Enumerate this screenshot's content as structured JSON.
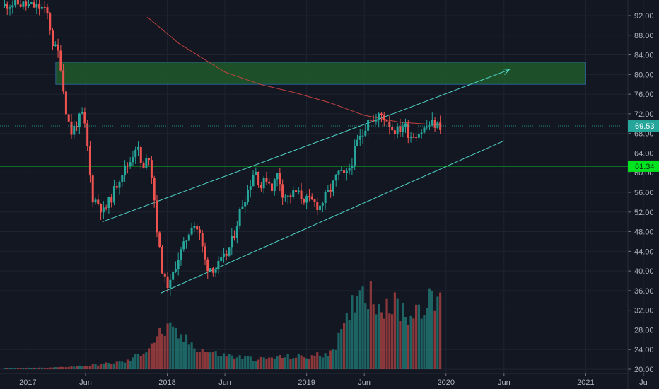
{
  "colors": {
    "background": "#131722",
    "grid": "#1f2330",
    "text": "#b2b5be",
    "up": "#26a69a",
    "down": "#ef5350",
    "volume_up": "#26a69a",
    "volume_down": "#ef5350",
    "channel": "#4fd1c5",
    "zone_fill": "#1f5a2a",
    "zone_border": "#2f6fa8",
    "support_line": "#00ff2a",
    "moving_average": "#c2423f",
    "price_badge": "#26a69a",
    "support_badge": "#00e41f"
  },
  "price_axis": {
    "labels": [
      "92.00",
      "88.00",
      "84.00",
      "80.00",
      "76.00",
      "72.00",
      "68.00",
      "64.00",
      "60.00",
      "56.00",
      "52.00",
      "48.00",
      "44.00",
      "40.00",
      "36.00",
      "32.00",
      "28.00",
      "24.00",
      "20.00"
    ]
  },
  "time_axis": {
    "labels": [
      "2017",
      "Jun",
      "2018",
      "Jun",
      "2019",
      "Jun",
      "2020",
      "Jun",
      "2021",
      "Ju"
    ]
  },
  "last_price_label": "69.53",
  "support_label": "61.34",
  "chart_data": {
    "type": "candlestick",
    "ylim": [
      20,
      94
    ],
    "xlim": [
      "2016-10-20",
      "2021-07-10"
    ],
    "current_price": 69.53,
    "support_level": 61.34,
    "target_zone": {
      "from": "2017-03-15",
      "to": "2021-01-01",
      "low": 78,
      "high": 82.5
    },
    "channel_upper": [
      [
        "2017-07-15",
        50
      ],
      [
        "2019-09-01",
        72.5
      ]
    ],
    "channel_lower": [
      [
        "2017-12-15",
        35.5
      ],
      [
        "2020-06-01",
        66.5
      ]
    ],
    "projection_arrow": [
      [
        "2019-09-01",
        72.5
      ],
      [
        "2020-06-15",
        81
      ]
    ],
    "moving_average": [
      [
        "2017-11-10",
        91.7
      ],
      [
        "2018-02-01",
        86.3
      ],
      [
        "2018-06-01",
        80.5
      ],
      [
        "2018-09-01",
        78.0
      ],
      [
        "2018-12-01",
        76.3
      ],
      [
        "2019-03-01",
        74.3
      ],
      [
        "2019-06-01",
        71.7
      ],
      [
        "2019-09-01",
        70.3
      ],
      [
        "2019-12-20",
        69.7
      ]
    ],
    "price_path": [
      [
        "2016-11-01",
        94
      ],
      [
        "2016-12-01",
        94.5
      ],
      [
        "2017-01-15",
        94
      ],
      [
        "2017-02-15",
        93.5
      ],
      [
        "2017-03-01",
        92
      ],
      [
        "2017-03-15",
        86
      ],
      [
        "2017-04-01",
        84
      ],
      [
        "2017-04-15",
        74
      ],
      [
        "2017-05-01",
        68
      ],
      [
        "2017-05-15",
        70
      ],
      [
        "2017-06-01",
        72
      ],
      [
        "2017-06-12",
        66
      ],
      [
        "2017-06-25",
        55
      ],
      [
        "2017-07-10",
        54
      ],
      [
        "2017-07-25",
        52
      ],
      [
        "2017-08-15",
        55
      ],
      [
        "2017-09-10",
        60
      ],
      [
        "2017-10-01",
        62
      ],
      [
        "2017-10-20",
        66
      ],
      [
        "2017-11-05",
        60
      ],
      [
        "2017-11-20",
        64
      ],
      [
        "2017-12-01",
        58
      ],
      [
        "2017-12-15",
        46
      ],
      [
        "2017-12-31",
        38
      ],
      [
        "2018-01-15",
        37
      ],
      [
        "2018-02-01",
        42
      ],
      [
        "2018-02-20",
        45
      ],
      [
        "2018-03-15",
        50
      ],
      [
        "2018-04-01",
        48
      ],
      [
        "2018-04-20",
        41
      ],
      [
        "2018-05-15",
        40.5
      ],
      [
        "2018-06-10",
        43
      ],
      [
        "2018-07-01",
        47
      ],
      [
        "2018-07-20",
        53
      ],
      [
        "2018-08-10",
        57
      ],
      [
        "2018-08-25",
        61
      ],
      [
        "2018-09-10",
        57
      ],
      [
        "2018-09-25",
        59
      ],
      [
        "2018-10-10",
        57
      ],
      [
        "2018-10-25",
        60
      ],
      [
        "2018-11-05",
        56
      ],
      [
        "2018-11-20",
        55
      ],
      [
        "2018-12-10",
        56
      ],
      [
        "2019-01-05",
        54.5
      ],
      [
        "2019-01-25",
        54
      ],
      [
        "2019-02-10",
        53
      ],
      [
        "2019-02-25",
        55
      ],
      [
        "2019-03-15",
        57
      ],
      [
        "2019-04-01",
        60
      ],
      [
        "2019-04-20",
        59
      ],
      [
        "2019-05-05",
        62
      ],
      [
        "2019-05-20",
        66
      ],
      [
        "2019-06-05",
        68
      ],
      [
        "2019-06-20",
        72
      ],
      [
        "2019-07-05",
        70
      ],
      [
        "2019-07-20",
        72
      ],
      [
        "2019-08-05",
        71
      ],
      [
        "2019-08-20",
        69
      ],
      [
        "2019-09-05",
        68.5
      ],
      [
        "2019-09-20",
        70
      ],
      [
        "2019-10-05",
        67.5
      ],
      [
        "2019-10-20",
        68
      ],
      [
        "2019-11-05",
        68.5
      ],
      [
        "2019-11-20",
        69.5
      ],
      [
        "2019-12-05",
        70
      ],
      [
        "2019-12-20",
        69.5
      ]
    ],
    "volume_profile": [
      [
        "2016-11-01",
        0.2
      ],
      [
        "2017-03-01",
        0.3
      ],
      [
        "2017-05-01",
        0.6
      ],
      [
        "2017-06-15",
        0.8
      ],
      [
        "2017-08-01",
        1.2
      ],
      [
        "2017-09-15",
        1.5
      ],
      [
        "2017-11-01",
        3.5
      ],
      [
        "2017-12-10",
        7
      ],
      [
        "2017-12-31",
        8
      ],
      [
        "2018-01-15",
        7.5
      ],
      [
        "2018-02-15",
        6
      ],
      [
        "2018-04-01",
        4
      ],
      [
        "2018-05-15",
        3
      ],
      [
        "2018-07-01",
        2.5
      ],
      [
        "2018-09-01",
        2
      ],
      [
        "2018-11-01",
        2.5
      ],
      [
        "2019-01-01",
        2.5
      ],
      [
        "2019-02-15",
        3
      ],
      [
        "2019-03-15",
        4.5
      ],
      [
        "2019-04-15",
        9
      ],
      [
        "2019-05-15",
        17
      ],
      [
        "2019-06-10",
        16
      ],
      [
        "2019-07-01",
        14
      ],
      [
        "2019-08-15",
        13
      ],
      [
        "2019-10-01",
        11
      ],
      [
        "2019-11-01",
        14
      ],
      [
        "2019-12-01",
        13
      ],
      [
        "2019-12-20",
        16
      ]
    ]
  }
}
